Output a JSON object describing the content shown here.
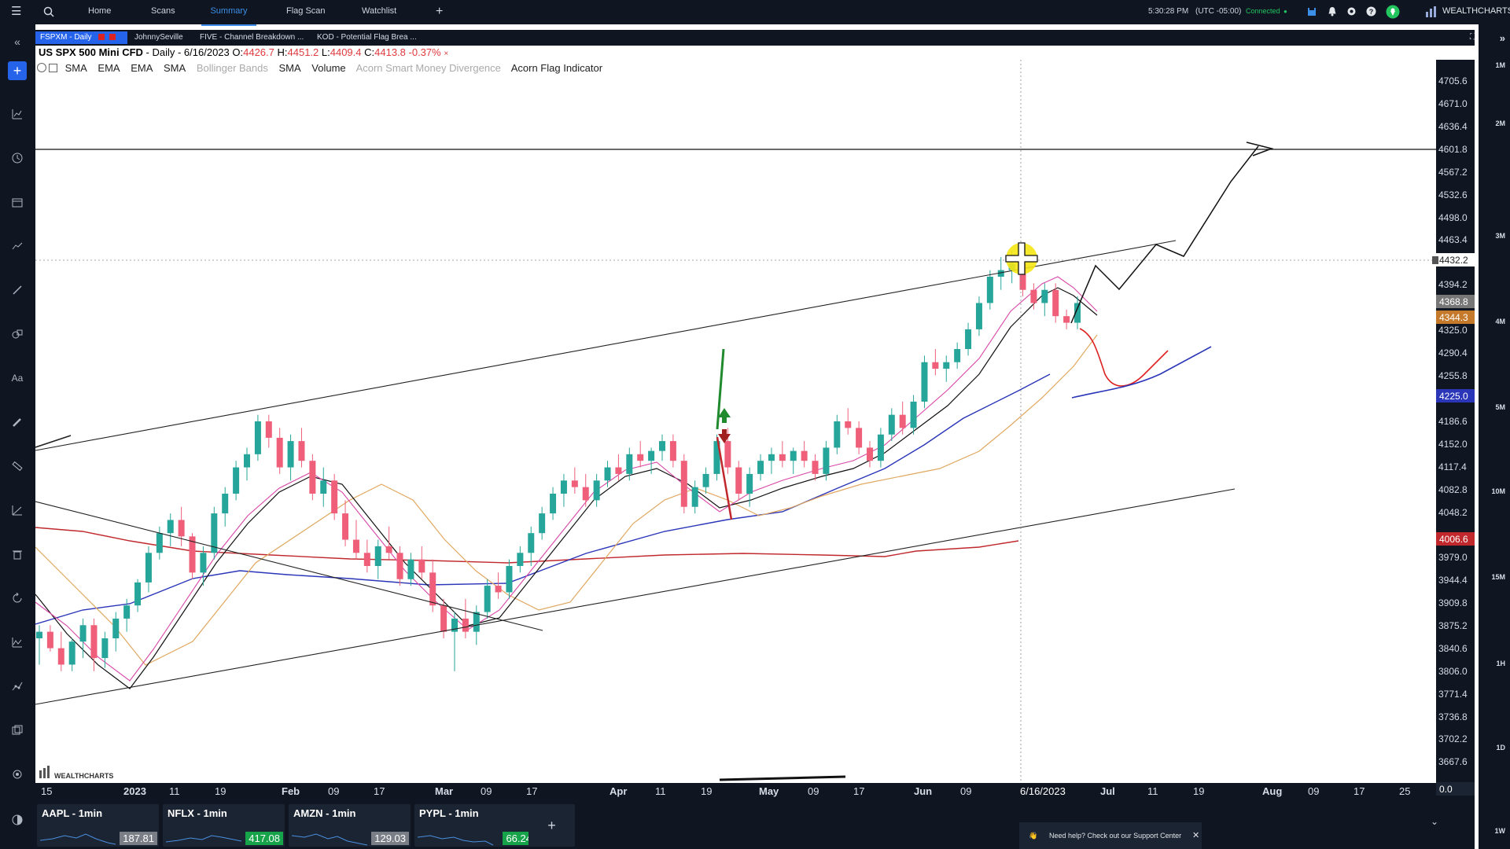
{
  "topbar": {
    "menu_icon": "hamburger-icon",
    "search_icon": "search-icon",
    "nav": [
      {
        "label": "Home"
      },
      {
        "label": "Scans"
      },
      {
        "label": "Summary"
      },
      {
        "label": "Flag Scan"
      },
      {
        "label": "Watchlist"
      }
    ],
    "add_label": "+",
    "time": "5:30:28 PM",
    "timezone": "(UTC -05:00)",
    "status": "Connected",
    "brand": "WEALTHCHARTS"
  },
  "chart_tabs": [
    {
      "label": "FSPXM - Daily"
    },
    {
      "label": "JohnnySeville"
    },
    {
      "label": "FIVE - Channel Breakdown ..."
    },
    {
      "label": "KOD - Potential Flag Brea ..."
    }
  ],
  "title": {
    "symbol": "US SPX 500 Mini CFD",
    "timeframe": " - Daily - 6/16/2023",
    "o_label": " O:",
    "o": "4426.7",
    "h_label": " H:",
    "h": "4451.2",
    "l_label": " L:",
    "l": "4409.4",
    "c_label": " C:",
    "c": "4413.8",
    "chg": "-0.37%"
  },
  "legend": {
    "items": [
      {
        "label": "SMA",
        "dim": false
      },
      {
        "label": "EMA",
        "dim": false
      },
      {
        "label": "EMA",
        "dim": false
      },
      {
        "label": "SMA",
        "dim": false
      },
      {
        "label": "Bollinger Bands",
        "dim": true
      },
      {
        "label": "SMA",
        "dim": false
      },
      {
        "label": "Volume",
        "dim": false
      },
      {
        "label": "Acorn Smart Money Divergence",
        "dim": true
      },
      {
        "label": "Acorn Flag Indicator",
        "dim": false
      }
    ]
  },
  "price_axis": {
    "ticks": [
      "4705.6",
      "4671.0",
      "4636.4",
      "4601.8",
      "4567.2",
      "4532.6",
      "4498.0",
      "4463.4",
      "4394.2",
      "4325.0",
      "4290.4",
      "4255.8",
      "4186.6",
      "4152.0",
      "4117.4",
      "4082.8",
      "4048.2",
      "3979.0",
      "3944.4",
      "3909.8",
      "3875.2",
      "3840.6",
      "3806.0",
      "3771.4",
      "3736.8",
      "3702.2",
      "3667.6"
    ],
    "badges": [
      {
        "value": "4432.2",
        "color": "#ffffff",
        "text": "#222222"
      },
      {
        "value": "4368.8",
        "color": "#777777",
        "text": "#ffffff"
      },
      {
        "value": "4344.3",
        "color": "#c47a2a",
        "text": "#ffffff"
      },
      {
        "value": "4225.0",
        "color": "#2a35b8",
        "text": "#ffffff"
      },
      {
        "value": "4006.6",
        "color": "#c0282d",
        "text": "#ffffff"
      },
      {
        "value": "0.0",
        "color": "#1b2432",
        "text": "#ffffff"
      }
    ]
  },
  "time_axis": {
    "labels": [
      "15",
      "2023",
      "11",
      "19",
      "Feb",
      "09",
      "17",
      "Mar",
      "09",
      "17",
      "Apr",
      "11",
      "19",
      "May",
      "09",
      "17",
      "Jun",
      "09",
      "6/16/2023",
      "Jul",
      "11",
      "19",
      "Aug",
      "09",
      "17",
      "25"
    ]
  },
  "timeframes": [
    "1M",
    "2M",
    "3M",
    "4M",
    "5M",
    "10M",
    "15M",
    "1H",
    "1D",
    "1W"
  ],
  "watermark": "WEALTHCHARTS",
  "minis": [
    {
      "label": "AAPL - 1min",
      "price": "187.81",
      "price_color": "#7a7f87"
    },
    {
      "label": "NFLX - 1min",
      "price": "417.08",
      "price_color": "#16a34a"
    },
    {
      "label": "AMZN - 1min",
      "price": "129.03",
      "price_color": "#7a7f87"
    },
    {
      "label": "PYPL - 1min",
      "price": "66.24",
      "price_color": "#16a34a"
    }
  ],
  "add_mini": "+",
  "toast": {
    "text": "Need help? Check out our Support Center",
    "close": "✕"
  },
  "chart_data": {
    "type": "candlestick",
    "symbol": "US SPX 500 Mini CFD",
    "timeframe": "Daily",
    "ylim": [
      3640,
      4740
    ],
    "candles": [
      [
        3860,
        3880,
        3820,
        3870
      ],
      [
        3870,
        3880,
        3840,
        3845
      ],
      [
        3845,
        3870,
        3810,
        3820
      ],
      [
        3820,
        3860,
        3810,
        3855
      ],
      [
        3855,
        3890,
        3830,
        3880
      ],
      [
        3880,
        3890,
        3810,
        3830
      ],
      [
        3830,
        3870,
        3815,
        3860
      ],
      [
        3860,
        3900,
        3840,
        3890
      ],
      [
        3890,
        3920,
        3870,
        3910
      ],
      [
        3910,
        3950,
        3900,
        3945
      ],
      [
        3945,
        4000,
        3930,
        3990
      ],
      [
        3990,
        4030,
        3980,
        4020
      ],
      [
        4020,
        4050,
        4000,
        4040
      ],
      [
        4040,
        4060,
        4000,
        4015
      ],
      [
        4015,
        4020,
        3950,
        3960
      ],
      [
        3960,
        4000,
        3940,
        3990
      ],
      [
        3990,
        4060,
        3980,
        4050
      ],
      [
        4050,
        4090,
        4030,
        4080
      ],
      [
        4080,
        4130,
        4070,
        4120
      ],
      [
        4120,
        4150,
        4100,
        4140
      ],
      [
        4140,
        4200,
        4130,
        4190
      ],
      [
        4190,
        4200,
        4150,
        4165
      ],
      [
        4165,
        4180,
        4110,
        4120
      ],
      [
        4120,
        4170,
        4100,
        4160
      ],
      [
        4160,
        4180,
        4120,
        4130
      ],
      [
        4130,
        4140,
        4070,
        4080
      ],
      [
        4080,
        4120,
        4060,
        4100
      ],
      [
        4100,
        4110,
        4040,
        4050
      ],
      [
        4050,
        4070,
        4000,
        4010
      ],
      [
        4010,
        4040,
        3980,
        3990
      ],
      [
        3990,
        4010,
        3960,
        3970
      ],
      [
        3970,
        4010,
        3950,
        4000
      ],
      [
        4000,
        4030,
        3980,
        3990
      ],
      [
        3990,
        4000,
        3940,
        3950
      ],
      [
        3950,
        3990,
        3940,
        3980
      ],
      [
        3980,
        4000,
        3950,
        3960
      ],
      [
        3960,
        3980,
        3900,
        3910
      ],
      [
        3910,
        3920,
        3860,
        3870
      ],
      [
        3870,
        3900,
        3810,
        3890
      ],
      [
        3890,
        3920,
        3860,
        3870
      ],
      [
        3870,
        3910,
        3850,
        3900
      ],
      [
        3900,
        3950,
        3890,
        3940
      ],
      [
        3940,
        3960,
        3920,
        3930
      ],
      [
        3930,
        3980,
        3920,
        3970
      ],
      [
        3970,
        4000,
        3960,
        3990
      ],
      [
        3990,
        4030,
        3970,
        4020
      ],
      [
        4020,
        4060,
        4010,
        4050
      ],
      [
        4050,
        4090,
        4040,
        4080
      ],
      [
        4080,
        4110,
        4060,
        4100
      ],
      [
        4100,
        4120,
        4080,
        4090
      ],
      [
        4090,
        4110,
        4060,
        4070
      ],
      [
        4070,
        4110,
        4060,
        4100
      ],
      [
        4100,
        4130,
        4090,
        4120
      ],
      [
        4120,
        4140,
        4100,
        4110
      ],
      [
        4110,
        4150,
        4100,
        4140
      ],
      [
        4140,
        4160,
        4120,
        4130
      ],
      [
        4130,
        4150,
        4110,
        4145
      ],
      [
        4145,
        4170,
        4130,
        4160
      ],
      [
        4160,
        4170,
        4120,
        4130
      ],
      [
        4130,
        4140,
        4050,
        4060
      ],
      [
        4060,
        4100,
        4050,
        4090
      ],
      [
        4090,
        4120,
        4080,
        4110
      ],
      [
        4110,
        4170,
        4100,
        4160
      ],
      [
        4160,
        4180,
        4110,
        4120
      ],
      [
        4120,
        4130,
        4070,
        4080
      ],
      [
        4080,
        4120,
        4060,
        4110
      ],
      [
        4110,
        4140,
        4100,
        4130
      ],
      [
        4130,
        4150,
        4110,
        4140
      ],
      [
        4140,
        4160,
        4120,
        4130
      ],
      [
        4130,
        4150,
        4110,
        4145
      ],
      [
        4145,
        4160,
        4120,
        4130
      ],
      [
        4130,
        4140,
        4100,
        4110
      ],
      [
        4110,
        4160,
        4100,
        4150
      ],
      [
        4150,
        4200,
        4140,
        4190
      ],
      [
        4190,
        4210,
        4170,
        4180
      ],
      [
        4180,
        4190,
        4140,
        4150
      ],
      [
        4150,
        4160,
        4120,
        4130
      ],
      [
        4130,
        4180,
        4120,
        4170
      ],
      [
        4170,
        4210,
        4160,
        4200
      ],
      [
        4200,
        4220,
        4170,
        4180
      ],
      [
        4180,
        4230,
        4170,
        4220
      ],
      [
        4220,
        4290,
        4210,
        4280
      ],
      [
        4280,
        4300,
        4260,
        4270
      ],
      [
        4270,
        4290,
        4250,
        4280
      ],
      [
        4280,
        4310,
        4270,
        4300
      ],
      [
        4300,
        4340,
        4290,
        4330
      ],
      [
        4330,
        4380,
        4320,
        4370
      ],
      [
        4370,
        4420,
        4360,
        4410
      ],
      [
        4410,
        4440,
        4390,
        4420
      ],
      [
        4420,
        4450,
        4400,
        4430
      ],
      [
        4430,
        4440,
        4380,
        4390
      ],
      [
        4390,
        4400,
        4360,
        4370
      ],
      [
        4370,
        4400,
        4350,
        4390
      ],
      [
        4390,
        4400,
        4340,
        4350
      ],
      [
        4350,
        4360,
        4330,
        4340
      ],
      [
        4340,
        4380,
        4330,
        4370
      ]
    ],
    "annotations": [
      "upper channel line",
      "lower channel line",
      "horizontal line at 4601.8",
      "projected path arrow",
      "crosshair at 6/16/2023"
    ]
  }
}
